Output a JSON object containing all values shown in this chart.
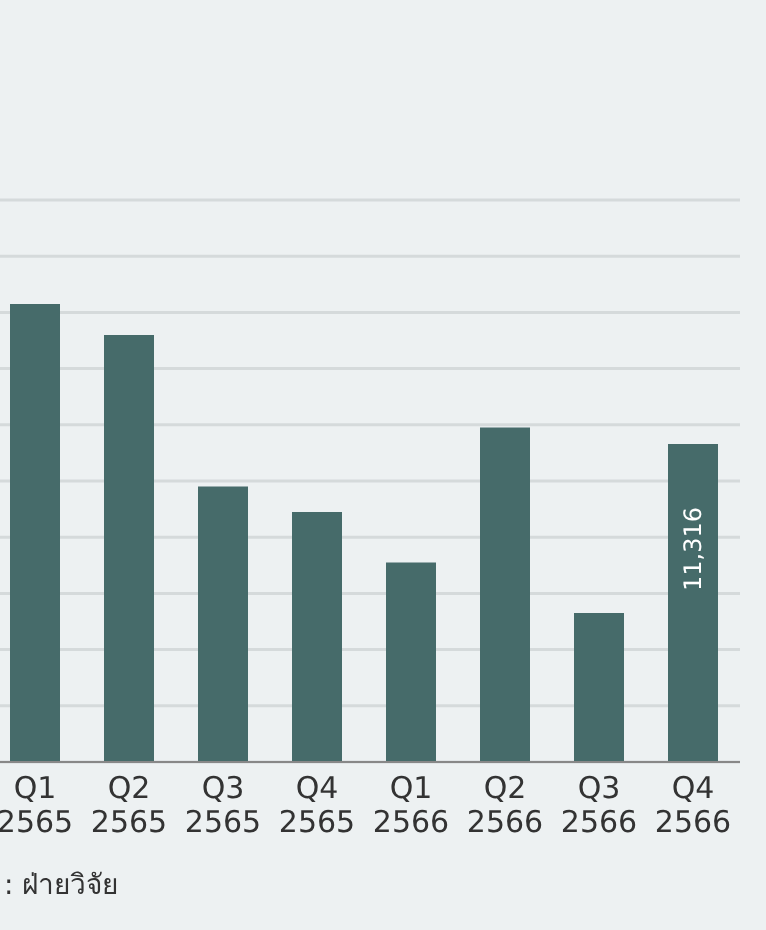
{
  "chart_data": {
    "type": "bar",
    "categories": [
      "Q1\n2565",
      "Q2\n2565",
      "Q3\n2565",
      "Q4\n2565",
      "Q1\n2566",
      "Q2\n2566",
      "Q3\n2566",
      "Q4\n2566"
    ],
    "values": [
      16300,
      15200,
      9800,
      8900,
      7100,
      11900,
      5300,
      11316
    ],
    "value_labels": [
      null,
      null,
      null,
      null,
      null,
      null,
      null,
      "11,316"
    ],
    "color": "#466b6a",
    "ylim": [
      0,
      20000
    ],
    "grid": "y",
    "tick_labels": "x",
    "annotations": [
      ": ฝ่ายวิจัย"
    ]
  }
}
